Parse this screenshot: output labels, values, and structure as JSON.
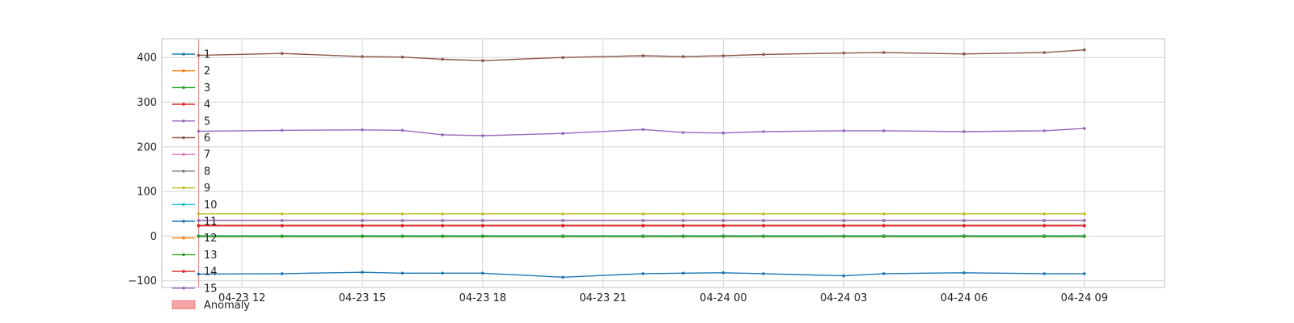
{
  "chart_data": {
    "type": "line",
    "x_ticks": [
      "04-23 12",
      "04-23 15",
      "04-23 18",
      "04-23 21",
      "04-24 00",
      "04-24 03",
      "04-24 06",
      "04-24 09"
    ],
    "x_tick_times": [
      "2024-04-23T12:00",
      "2024-04-23T15:00",
      "2024-04-23T18:00",
      "2024-04-23T21:00",
      "2024-04-24T00:00",
      "2024-04-24T03:00",
      "2024-04-24T06:00",
      "2024-04-24T09:00"
    ],
    "x_range": [
      "2024-04-23T10:00",
      "2024-04-24T11:00"
    ],
    "y_ticks": [
      400,
      300,
      200,
      100,
      0,
      -100
    ],
    "ylim": [
      -115,
      442
    ],
    "grid": true,
    "legend_position": "top-left",
    "x": [
      "2024-04-23T10:55",
      "2024-04-23T13:00",
      "2024-04-23T15:00",
      "2024-04-23T16:00",
      "2024-04-23T17:00",
      "2024-04-23T18:00",
      "2024-04-23T20:00",
      "2024-04-23T22:00",
      "2024-04-23T23:00",
      "2024-04-24T00:00",
      "2024-04-24T01:00",
      "2024-04-24T03:00",
      "2024-04-24T04:00",
      "2024-04-24T06:00",
      "2024-04-24T08:00",
      "2024-04-24T09:00"
    ],
    "series": [
      {
        "name": "1",
        "color": "#1f77b4",
        "values": [
          -85,
          -84,
          -81,
          -83,
          -83,
          -83,
          -92,
          -84,
          -83,
          -82,
          -84,
          -89,
          -84,
          -82,
          -84,
          -84
        ]
      },
      {
        "name": "2",
        "color": "#ff7f0e",
        "values": [
          0,
          0,
          0,
          0,
          0,
          0,
          0,
          0,
          0,
          0,
          0,
          0,
          0,
          0,
          0,
          0
        ]
      },
      {
        "name": "3",
        "color": "#2ca02c",
        "values": [
          -1,
          -1,
          -1,
          -1,
          -1,
          -1,
          -1,
          -1,
          -1,
          -1,
          -1,
          -1,
          -1,
          -1,
          -1,
          -1
        ]
      },
      {
        "name": "4",
        "color": "#d62728",
        "values": [
          23,
          23,
          23,
          23,
          23,
          23,
          23,
          23,
          23,
          23,
          23,
          23,
          23,
          23,
          23,
          23
        ]
      },
      {
        "name": "5",
        "color": "#9467bd",
        "values": [
          235,
          237,
          238,
          237,
          227,
          225,
          230,
          239,
          232,
          231,
          234,
          236,
          236,
          234,
          236,
          241
        ]
      },
      {
        "name": "6",
        "color": "#8c564b",
        "values": [
          405,
          409,
          402,
          401,
          396,
          393,
          400,
          404,
          402,
          404,
          407,
          410,
          411,
          408,
          411,
          417
        ]
      },
      {
        "name": "7",
        "color": "#e377c2",
        "values": [
          0,
          0,
          0,
          0,
          0,
          0,
          0,
          0,
          0,
          0,
          0,
          0,
          0,
          0,
          0,
          0
        ]
      },
      {
        "name": "8",
        "color": "#7f7f7f",
        "values": [
          35,
          35,
          35,
          35,
          35,
          35,
          35,
          35,
          35,
          35,
          35,
          35,
          35,
          35,
          35,
          35
        ]
      },
      {
        "name": "9",
        "color": "#bcbd22",
        "values": [
          50,
          50,
          50,
          50,
          50,
          50,
          50,
          50,
          50,
          50,
          50,
          50,
          50,
          50,
          50,
          50
        ]
      },
      {
        "name": "10",
        "color": "#17becf",
        "values": [
          1,
          1,
          1,
          1,
          1,
          1,
          1,
          1,
          1,
          1,
          1,
          1,
          1,
          1,
          1,
          1
        ]
      },
      {
        "name": "11",
        "color": "#1f77b4",
        "values": [
          0,
          0,
          0,
          0,
          0,
          0,
          0,
          0,
          0,
          0,
          0,
          0,
          0,
          0,
          0,
          0
        ]
      },
      {
        "name": "12",
        "color": "#ff7f0e",
        "values": [
          0,
          0,
          0,
          0,
          0,
          0,
          0,
          0,
          0,
          0,
          0,
          0,
          0,
          0,
          0,
          0
        ]
      },
      {
        "name": "13",
        "color": "#2ca02c",
        "values": [
          0,
          0,
          0,
          0,
          0,
          0,
          0,
          0,
          0,
          0,
          0,
          0,
          0,
          0,
          0,
          0
        ]
      },
      {
        "name": "14",
        "color": "#d62728",
        "values": [
          24,
          24,
          24,
          24,
          24,
          24,
          24,
          24,
          24,
          24,
          24,
          24,
          24,
          24,
          24,
          24
        ]
      },
      {
        "name": "15",
        "color": "#9467bd",
        "values": [
          35,
          35,
          35,
          35,
          35,
          35,
          35,
          35,
          35,
          35,
          35,
          35,
          35,
          35,
          35,
          35
        ]
      }
    ],
    "anomaly": {
      "label": "Anomaly",
      "color": "#f4a6a6",
      "edge_color": "#e87070",
      "x": "2024-04-23T10:55"
    }
  }
}
